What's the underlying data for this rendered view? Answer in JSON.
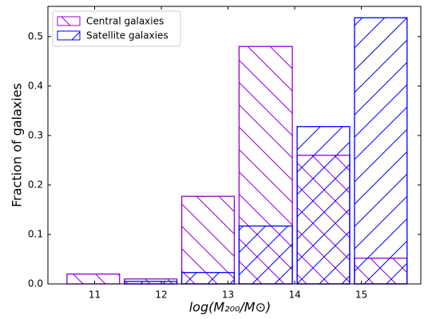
{
  "chart_data": {
    "type": "histogram",
    "xlabel": "log(M₂₀₀/M⊙)",
    "ylabel": "Fraction of galaxies",
    "bins": [
      10.55,
      11.41,
      12.27,
      13.13,
      14.0,
      14.86,
      15.72
    ],
    "series": [
      {
        "name": "Central galaxies",
        "color": "#9400d3",
        "hatch": "\\",
        "values": [
          0.02,
          0.01,
          0.177,
          0.48,
          0.26,
          0.052
        ]
      },
      {
        "name": "Satellite galaxies",
        "color": "#0000ff",
        "hatch": "/",
        "values": [
          0,
          0.005,
          0.023,
          0.117,
          0.318,
          0.538
        ]
      }
    ],
    "xlim": [
      10.3,
      15.89
    ],
    "ylim": [
      0,
      0.561
    ],
    "xticks": [
      11,
      12,
      13,
      14,
      15
    ],
    "yticks": [
      {
        "value": 0,
        "label": "0.0"
      },
      {
        "value": 0.1,
        "label": "0.1"
      },
      {
        "value": 0.2,
        "label": "0.2"
      },
      {
        "value": 0.3,
        "label": "0.3"
      },
      {
        "value": 0.4,
        "label": "0.4"
      },
      {
        "value": 0.5,
        "label": "0.5"
      }
    ],
    "legend": "upper left"
  }
}
